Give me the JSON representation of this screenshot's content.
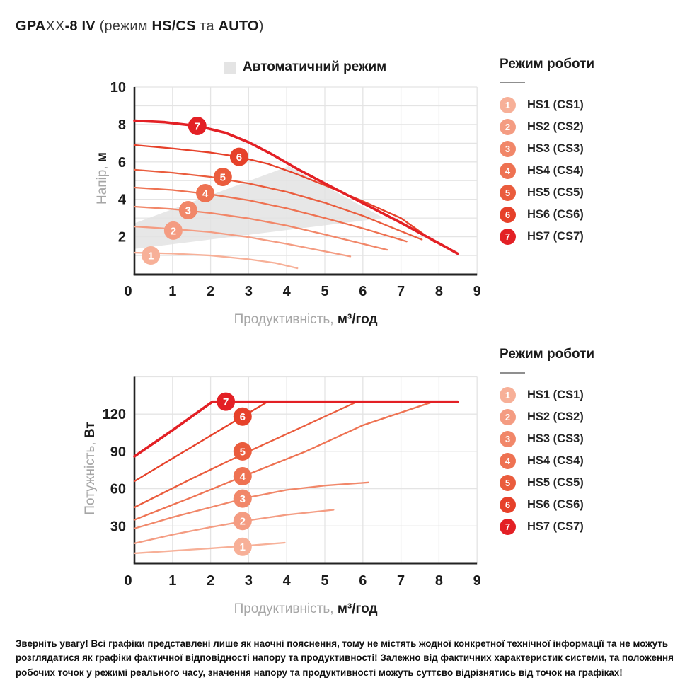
{
  "title": {
    "p1": "GPA",
    "p2": "XX",
    "p3": "-8 IV",
    "p4": " (режим ",
    "p5": "HS/CS",
    "p6": " та ",
    "p7": "AUTO",
    "p8": ")"
  },
  "colors": {
    "modes": [
      "#F7B098",
      "#F49C82",
      "#F18769",
      "#EE7252",
      "#EA5C3D",
      "#E6412A",
      "#E32025"
    ],
    "grid": "#E4E4E4",
    "axis": "#222222",
    "auto_region": "#E3E3E3",
    "text_gray": "#A6A6A6",
    "text_dark": "#1C1C1C",
    "badge_text": "#FFFFFF"
  },
  "auto_mode_legend": {
    "label": "Автоматичний режим"
  },
  "legend": {
    "title": "Режим роботи",
    "items": [
      {
        "num": "1",
        "label": "HS1 (CS1)"
      },
      {
        "num": "2",
        "label": "HS2 (CS2)"
      },
      {
        "num": "3",
        "label": "HS3 (CS3)"
      },
      {
        "num": "4",
        "label": "HS4 (CS4)"
      },
      {
        "num": "5",
        "label": "HS5 (CS5)"
      },
      {
        "num": "6",
        "label": "HS6 (CS6)"
      },
      {
        "num": "7",
        "label": "HS7 (CS7)"
      }
    ]
  },
  "chart_data": [
    {
      "type": "line",
      "name": "head-vs-flow",
      "xlabel": {
        "gray": "Продуктивність, ",
        "bold": "м³/год"
      },
      "ylabel": {
        "gray": "Напір, ",
        "bold": "м"
      },
      "xlim": [
        0,
        9
      ],
      "ylim": [
        0,
        10
      ],
      "xticks": [
        0,
        1,
        2,
        3,
        4,
        5,
        6,
        7,
        8,
        9
      ],
      "yticks": [
        2,
        4,
        6,
        8,
        10
      ],
      "ygrid_step": 1,
      "grid": true,
      "auto_region": [
        [
          0,
          2.72
        ],
        [
          4.05,
          5.77
        ],
        [
          6.55,
          3.0
        ],
        [
          0,
          1.35
        ]
      ],
      "series": [
        {
          "mode": "HS1 (CS1)",
          "badge": "1",
          "badge_at": [
            0.43,
            1.0
          ],
          "points": [
            [
              0,
              1.15
            ],
            [
              1,
              1.1
            ],
            [
              2,
              1.0
            ],
            [
              3,
              0.8
            ],
            [
              3.7,
              0.6
            ],
            [
              4.28,
              0.32
            ]
          ]
        },
        {
          "mode": "HS2 (CS2)",
          "badge": "2",
          "badge_at": [
            1.02,
            2.33
          ],
          "points": [
            [
              0,
              2.55
            ],
            [
              1,
              2.42
            ],
            [
              2,
              2.25
            ],
            [
              3,
              1.98
            ],
            [
              4,
              1.62
            ],
            [
              5,
              1.22
            ],
            [
              5.67,
              0.95
            ]
          ]
        },
        {
          "mode": "HS3 (CS3)",
          "badge": "3",
          "badge_at": [
            1.41,
            3.42
          ],
          "points": [
            [
              0,
              3.61
            ],
            [
              1,
              3.48
            ],
            [
              2,
              3.27
            ],
            [
              3,
              2.98
            ],
            [
              4,
              2.6
            ],
            [
              5,
              2.12
            ],
            [
              6,
              1.62
            ],
            [
              6.64,
              1.3
            ]
          ]
        },
        {
          "mode": "HS4 (CS4)",
          "badge": "4",
          "badge_at": [
            1.86,
            4.33
          ],
          "points": [
            [
              0,
              4.63
            ],
            [
              1,
              4.5
            ],
            [
              2,
              4.27
            ],
            [
              3,
              3.95
            ],
            [
              4,
              3.52
            ],
            [
              5,
              3.0
            ],
            [
              6,
              2.45
            ],
            [
              7.15,
              1.75
            ]
          ]
        },
        {
          "mode": "HS5 (CS5)",
          "badge": "5",
          "badge_at": [
            2.32,
            5.2
          ],
          "points": [
            [
              0,
              5.58
            ],
            [
              1,
              5.42
            ],
            [
              2,
              5.2
            ],
            [
              3,
              4.85
            ],
            [
              4,
              4.4
            ],
            [
              5,
              3.82
            ],
            [
              6,
              3.12
            ],
            [
              7,
              2.3
            ],
            [
              7.55,
              1.85
            ]
          ]
        },
        {
          "mode": "HS6 (CS6)",
          "badge": "6",
          "badge_at": [
            2.75,
            6.27
          ],
          "points": [
            [
              0,
              6.9
            ],
            [
              1,
              6.72
            ],
            [
              2,
              6.5
            ],
            [
              2.75,
              6.27
            ],
            [
              3.5,
              5.9
            ],
            [
              4.2,
              5.4
            ],
            [
              5,
              4.75
            ],
            [
              6,
              3.9
            ],
            [
              7,
              3.0
            ],
            [
              7.9,
              1.7
            ]
          ]
        },
        {
          "mode": "HS7 (CS7)",
          "badge": "7",
          "badge_at": [
            1.65,
            7.92
          ],
          "points": [
            [
              0,
              8.2
            ],
            [
              0.8,
              8.12
            ],
            [
              1.65,
              7.92
            ],
            [
              2.4,
              7.55
            ],
            [
              3,
              7.05
            ],
            [
              3.6,
              6.42
            ],
            [
              4.3,
              5.6
            ],
            [
              5,
              4.85
            ],
            [
              6,
              3.8
            ],
            [
              7,
              2.75
            ],
            [
              8,
              1.65
            ],
            [
              8.49,
              1.1
            ]
          ]
        }
      ]
    },
    {
      "type": "line",
      "name": "power-vs-flow",
      "xlabel": {
        "gray": "Продуктивність, ",
        "bold": "м³/год"
      },
      "ylabel": {
        "gray": "Потужність, ",
        "bold": "Вт"
      },
      "xlim": [
        0,
        9
      ],
      "ylim": [
        0,
        150
      ],
      "xticks": [
        0,
        1,
        2,
        3,
        4,
        5,
        6,
        7,
        8,
        9
      ],
      "yticks": [
        30,
        60,
        90,
        120
      ],
      "ygrid_step": 30,
      "grid": true,
      "auto_region": null,
      "series": [
        {
          "mode": "HS1 (CS1)",
          "badge": "1",
          "badge_at": [
            2.84,
            13.2
          ],
          "points": [
            [
              0,
              8
            ],
            [
              1,
              10
            ],
            [
              2,
              12
            ],
            [
              3,
              14.2
            ],
            [
              3.95,
              16.5
            ]
          ]
        },
        {
          "mode": "HS2 (CS2)",
          "badge": "2",
          "badge_at": [
            2.84,
            34
          ],
          "points": [
            [
              0,
              16
            ],
            [
              1,
              23
            ],
            [
              2,
              29
            ],
            [
              3,
              34.5
            ],
            [
              4,
              39
            ],
            [
              5.23,
              43
            ]
          ]
        },
        {
          "mode": "HS3 (CS3)",
          "badge": "3",
          "badge_at": [
            2.84,
            52
          ],
          "points": [
            [
              0,
              28
            ],
            [
              1,
              37
            ],
            [
              2,
              45
            ],
            [
              3,
              53
            ],
            [
              4,
              59
            ],
            [
              5,
              62.5
            ],
            [
              6.15,
              65
            ]
          ]
        },
        {
          "mode": "HS4 (CS4)",
          "badge": "4",
          "badge_at": [
            2.84,
            70
          ],
          "points": [
            [
              0,
              35
            ],
            [
              1.5,
              53
            ],
            [
              2.86,
              70
            ],
            [
              4.5,
              90
            ],
            [
              6,
              111
            ],
            [
              7.85,
              130
            ]
          ]
        },
        {
          "mode": "HS5 (CS5)",
          "badge": "5",
          "badge_at": [
            2.84,
            90
          ],
          "points": [
            [
              0,
              45
            ],
            [
              1.5,
              68
            ],
            [
              3,
              90
            ],
            [
              4.5,
              111
            ],
            [
              5.85,
              130
            ]
          ]
        },
        {
          "mode": "HS6 (CS6)",
          "badge": "6",
          "badge_at": [
            2.84,
            118
          ],
          "points": [
            [
              0,
              66
            ],
            [
              1.2,
              88
            ],
            [
              2.4,
              110
            ],
            [
              3.5,
              130
            ],
            [
              3.85,
              130
            ]
          ]
        },
        {
          "mode": "HS7 (CS7)",
          "badge": "7",
          "badge_at": [
            2.4,
            130
          ],
          "points": [
            [
              0,
              86
            ],
            [
              1,
              107
            ],
            [
              2.05,
              130
            ],
            [
              8.49,
              130
            ]
          ]
        }
      ]
    }
  ],
  "footer": {
    "note": "Зверніть увагу! Всі графіки представлені лише як наочні пояснення, тому не містять жодної конкретної технічної інформації та не можуть розглядатися як графіки фактичної відповідності напору та продуктивності! Залежно від фактичних характеристик системи, та положення робочих точок у режимі реального часу, значення напору та продуктивності можуть суттєво відрізнятись від точок на графіках!"
  }
}
